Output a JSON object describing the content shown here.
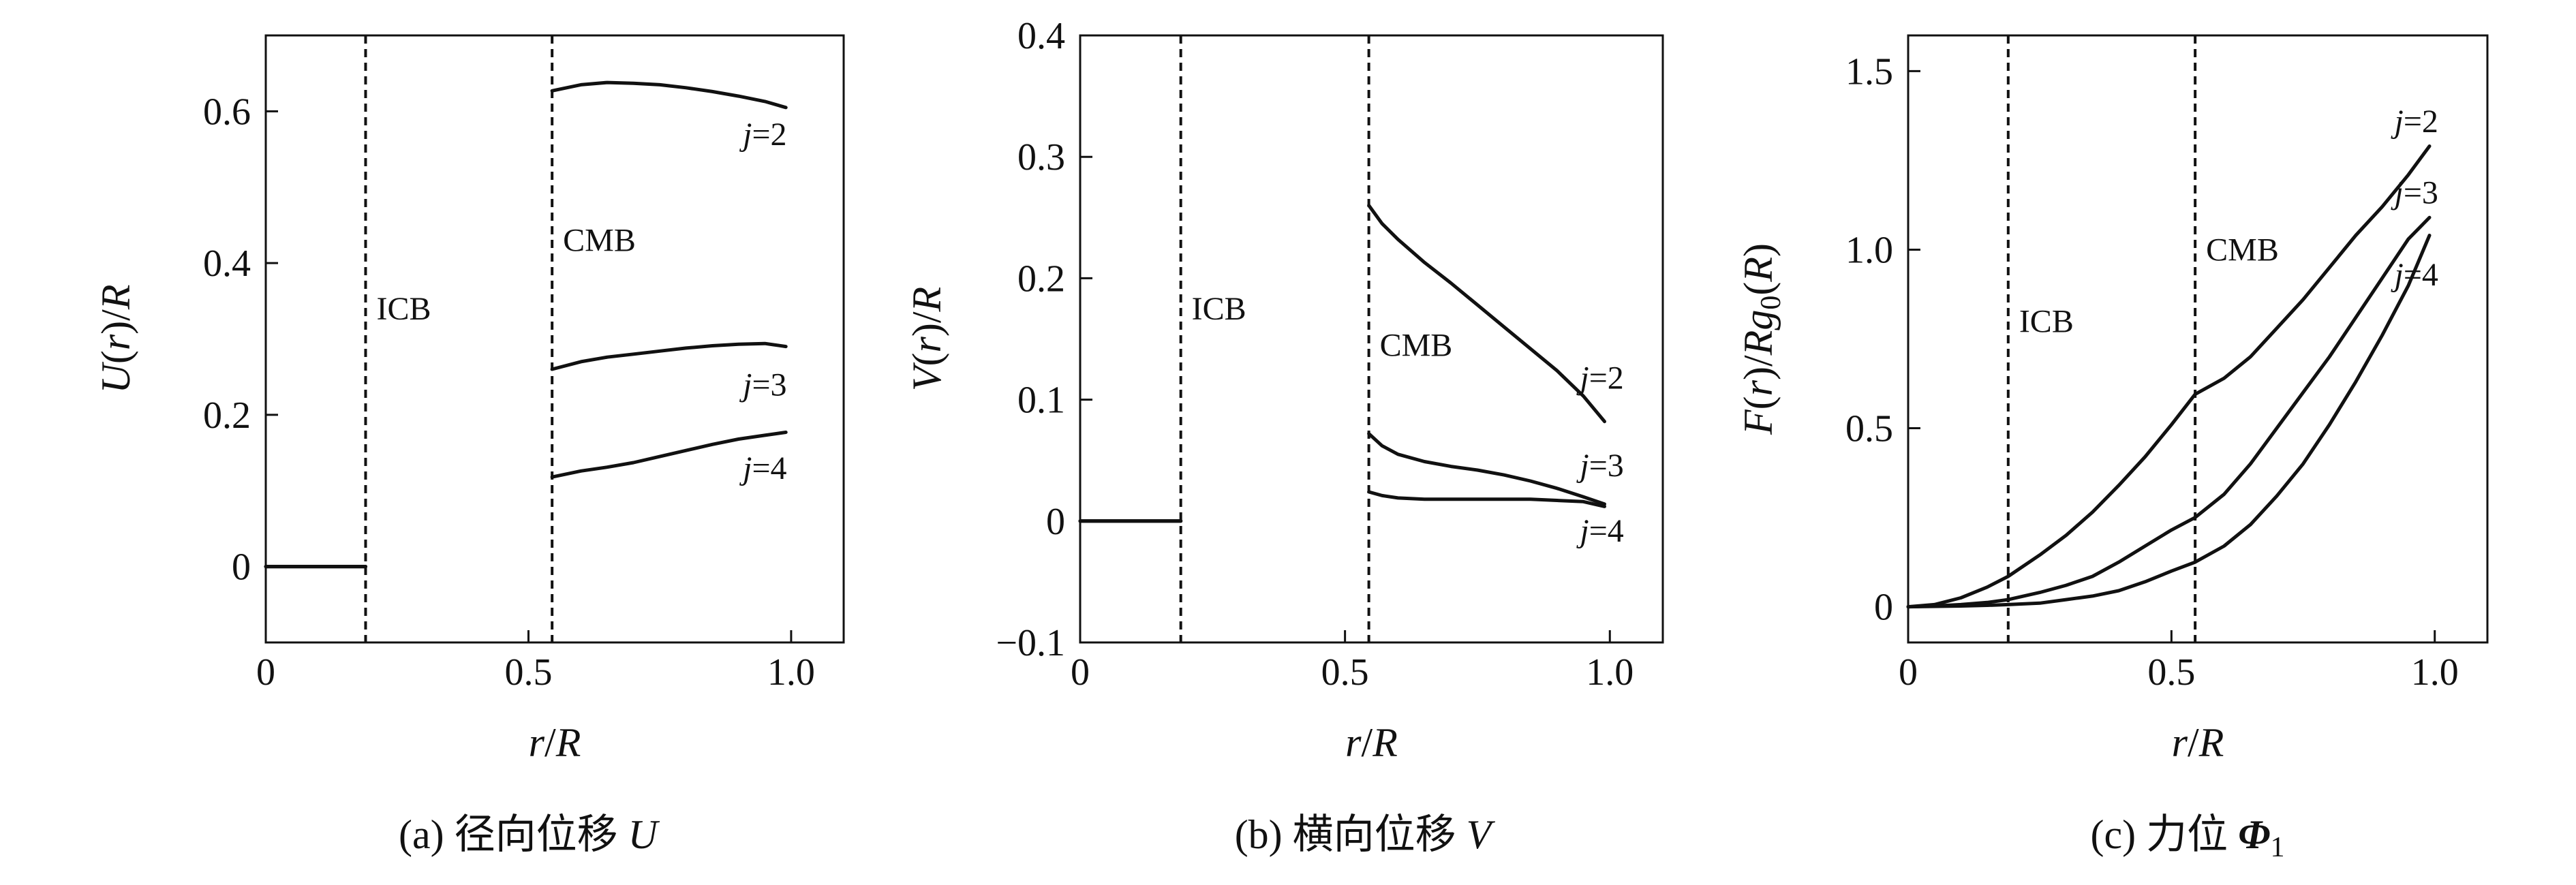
{
  "chart_data": [
    {
      "type": "line",
      "panel": "a",
      "caption": "(a) 径向位移 U",
      "caption_prefix": "(a) 径向位移",
      "caption_symbol": "U",
      "ylabel": "U(r)/R",
      "xlabel": "r/R",
      "xlim": [
        0,
        1.1
      ],
      "ylim": [
        -0.1,
        0.7
      ],
      "xticks": [
        0,
        0.5,
        1.0
      ],
      "xtick_labels": [
        "0",
        "0.5",
        "1.0"
      ],
      "yticks": [
        0,
        0.2,
        0.4,
        0.6
      ],
      "ytick_labels": [
        "0",
        "0.2",
        "0.4",
        "0.6"
      ],
      "grid": false,
      "boundaries": [
        {
          "label": "ICB",
          "x": 0.19,
          "label_y": 0.34
        },
        {
          "label": "CMB",
          "x": 0.545,
          "label_y": 0.43
        }
      ],
      "series": [
        {
          "name": "j=2",
          "label_xy": [
            0.95,
            0.57
          ],
          "segments": [
            {
              "x": [
                0,
                0.19
              ],
              "y": [
                0,
                0
              ]
            },
            {
              "x": [
                0.545,
                0.6,
                0.65,
                0.7,
                0.75,
                0.8,
                0.85,
                0.9,
                0.95,
                0.99
              ],
              "y": [
                0.627,
                0.635,
                0.638,
                0.637,
                0.635,
                0.631,
                0.626,
                0.62,
                0.613,
                0.605
              ]
            }
          ]
        },
        {
          "name": "j=3",
          "label_xy": [
            0.95,
            0.24
          ],
          "segments": [
            {
              "x": [
                0,
                0.19
              ],
              "y": [
                0,
                0
              ]
            },
            {
              "x": [
                0.545,
                0.6,
                0.65,
                0.7,
                0.75,
                0.8,
                0.85,
                0.9,
                0.95,
                0.99
              ],
              "y": [
                0.26,
                0.27,
                0.276,
                0.28,
                0.284,
                0.288,
                0.291,
                0.293,
                0.294,
                0.29
              ]
            }
          ]
        },
        {
          "name": "j=4",
          "label_xy": [
            0.95,
            0.13
          ],
          "segments": [
            {
              "x": [
                0,
                0.19
              ],
              "y": [
                0,
                0
              ]
            },
            {
              "x": [
                0.545,
                0.6,
                0.65,
                0.7,
                0.75,
                0.8,
                0.85,
                0.9,
                0.95,
                0.99
              ],
              "y": [
                0.118,
                0.126,
                0.131,
                0.137,
                0.145,
                0.153,
                0.161,
                0.168,
                0.173,
                0.177
              ]
            }
          ]
        }
      ]
    },
    {
      "type": "line",
      "panel": "b",
      "caption": "(b) 横向位移 V",
      "caption_prefix": "(b) 横向位移",
      "caption_symbol": "V",
      "ylabel": "V(r)/R",
      "xlabel": "r/R",
      "xlim": [
        0,
        1.1
      ],
      "ylim": [
        -0.1,
        0.4
      ],
      "xticks": [
        0,
        0.5,
        1.0
      ],
      "xtick_labels": [
        "0",
        "0.5",
        "1.0"
      ],
      "yticks": [
        -0.1,
        0,
        0.1,
        0.2,
        0.3,
        0.4
      ],
      "ytick_labels": [
        "−0.1",
        "0",
        "0.1",
        "0.2",
        "0.3",
        "0.4"
      ],
      "grid": false,
      "boundaries": [
        {
          "label": "ICB",
          "x": 0.19,
          "label_y": 0.175
        },
        {
          "label": "CMB",
          "x": 0.545,
          "label_y": 0.145
        }
      ],
      "series": [
        {
          "name": "j=2",
          "label_xy": [
            0.985,
            0.118
          ],
          "segments": [
            {
              "x": [
                0,
                0.19
              ],
              "y": [
                0,
                0
              ]
            },
            {
              "x": [
                0.545,
                0.57,
                0.6,
                0.65,
                0.7,
                0.75,
                0.8,
                0.85,
                0.9,
                0.95,
                0.99
              ],
              "y": [
                0.26,
                0.245,
                0.232,
                0.213,
                0.196,
                0.178,
                0.16,
                0.142,
                0.124,
                0.103,
                0.082
              ]
            }
          ]
        },
        {
          "name": "j=3",
          "label_xy": [
            0.985,
            0.046
          ],
          "segments": [
            {
              "x": [
                0,
                0.19
              ],
              "y": [
                0,
                0
              ]
            },
            {
              "x": [
                0.545,
                0.57,
                0.6,
                0.65,
                0.7,
                0.75,
                0.8,
                0.85,
                0.9,
                0.95,
                0.99
              ],
              "y": [
                0.072,
                0.062,
                0.055,
                0.049,
                0.045,
                0.042,
                0.038,
                0.033,
                0.027,
                0.02,
                0.014
              ]
            }
          ]
        },
        {
          "name": "j=4",
          "label_xy": [
            0.985,
            -0.008
          ],
          "segments": [
            {
              "x": [
                0,
                0.19
              ],
              "y": [
                0,
                0
              ]
            },
            {
              "x": [
                0.545,
                0.57,
                0.6,
                0.65,
                0.7,
                0.75,
                0.8,
                0.85,
                0.9,
                0.95,
                0.99
              ],
              "y": [
                0.024,
                0.021,
                0.019,
                0.018,
                0.018,
                0.018,
                0.018,
                0.018,
                0.017,
                0.016,
                0.012
              ]
            }
          ]
        }
      ]
    },
    {
      "type": "line",
      "panel": "c",
      "caption": "(c) 力位 Φ1",
      "caption_prefix": "(c) 力位",
      "caption_symbol": "Φ",
      "caption_subscript": "1",
      "ylabel": "F(r)/Rg0(R)",
      "xlabel": "r/R",
      "xlim": [
        0,
        1.1
      ],
      "ylim": [
        -0.1,
        1.6
      ],
      "xticks": [
        0,
        0.5,
        1.0
      ],
      "xtick_labels": [
        "0",
        "0.5",
        "1.0"
      ],
      "yticks": [
        0,
        0.5,
        1.0,
        1.5
      ],
      "ytick_labels": [
        "0",
        "0.5",
        "1.0",
        "1.5"
      ],
      "grid": false,
      "boundaries": [
        {
          "label": "ICB",
          "x": 0.19,
          "label_y": 0.8
        },
        {
          "label": "CMB",
          "x": 0.545,
          "label_y": 1.0
        }
      ],
      "series": [
        {
          "name": "j=2",
          "label_xy": [
            0.965,
            1.36
          ],
          "segments": [
            {
              "x": [
                0,
                0.05,
                0.1,
                0.15,
                0.19,
                0.25,
                0.3,
                0.35,
                0.4,
                0.45,
                0.5,
                0.545,
                0.6,
                0.65,
                0.7,
                0.75,
                0.8,
                0.85,
                0.9,
                0.95,
                0.99
              ],
              "y": [
                0,
                0.006,
                0.025,
                0.055,
                0.085,
                0.145,
                0.2,
                0.265,
                0.34,
                0.42,
                0.51,
                0.595,
                0.64,
                0.7,
                0.78,
                0.86,
                0.95,
                1.04,
                1.12,
                1.21,
                1.29
              ]
            }
          ]
        },
        {
          "name": "j=3",
          "label_xy": [
            0.965,
            1.16
          ],
          "segments": [
            {
              "x": [
                0,
                0.05,
                0.1,
                0.15,
                0.19,
                0.25,
                0.3,
                0.35,
                0.4,
                0.45,
                0.5,
                0.545,
                0.6,
                0.65,
                0.7,
                0.75,
                0.8,
                0.85,
                0.9,
                0.95,
                0.99
              ],
              "y": [
                0,
                0.002,
                0.006,
                0.012,
                0.02,
                0.04,
                0.06,
                0.085,
                0.125,
                0.17,
                0.215,
                0.25,
                0.315,
                0.4,
                0.5,
                0.6,
                0.7,
                0.81,
                0.92,
                1.03,
                1.09
              ]
            }
          ]
        },
        {
          "name": "j=4",
          "label_xy": [
            0.965,
            0.93
          ],
          "segments": [
            {
              "x": [
                0,
                0.1,
                0.15,
                0.19,
                0.25,
                0.3,
                0.35,
                0.4,
                0.45,
                0.5,
                0.545,
                0.6,
                0.65,
                0.7,
                0.75,
                0.8,
                0.85,
                0.9,
                0.95,
                0.99
              ],
              "y": [
                0,
                0.002,
                0.004,
                0.006,
                0.01,
                0.02,
                0.03,
                0.045,
                0.07,
                0.1,
                0.125,
                0.17,
                0.23,
                0.31,
                0.4,
                0.51,
                0.63,
                0.76,
                0.9,
                1.04
              ]
            }
          ]
        }
      ]
    }
  ]
}
